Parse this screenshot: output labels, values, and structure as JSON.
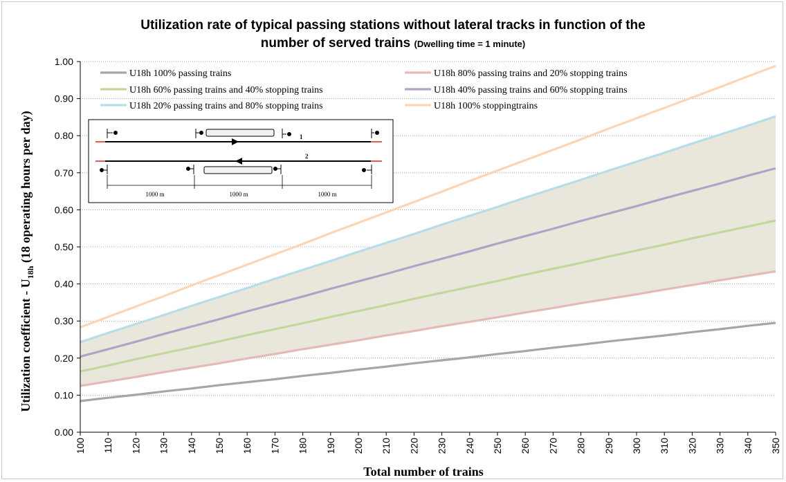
{
  "chart_data": {
    "type": "line",
    "title": "Utilization rate of typical passing stations without lateral tracks in function of the",
    "title_line2": "number of served trains",
    "subtitle": "(Dwelling time = 1 minute)",
    "xlabel": "Total number of trains",
    "ylabel_prefix": "Utilization coefficient - U",
    "ylabel_sub": "18h",
    "ylabel_suffix": " (18 operating hours per day)",
    "x": [
      100,
      110,
      120,
      130,
      140,
      150,
      160,
      170,
      180,
      190,
      200,
      210,
      220,
      230,
      240,
      250,
      260,
      270,
      280,
      290,
      300,
      310,
      320,
      330,
      340,
      350
    ],
    "xlim": [
      100,
      350
    ],
    "ylim": [
      0,
      1.0
    ],
    "x_ticks": [
      "100",
      "110",
      "120",
      "130",
      "140",
      "150",
      "160",
      "170",
      "180",
      "190",
      "200",
      "210",
      "220",
      "230",
      "240",
      "250",
      "260",
      "270",
      "280",
      "290",
      "300",
      "310",
      "320",
      "330",
      "340",
      "350"
    ],
    "y_ticks": [
      "0.00",
      "0.10",
      "0.20",
      "0.30",
      "0.40",
      "0.50",
      "0.60",
      "0.70",
      "0.80",
      "0.90",
      "1.00"
    ],
    "grid": "horizontal dotted",
    "legend_position": "top-left",
    "shaded_band": {
      "between": [
        "U18h 80% passing trains and 20% stopping trains",
        "U18h 20% passing trains and 80% stopping trains"
      ],
      "color": "#e9e6dc"
    },
    "series": [
      {
        "name": "U18h 100% passing trains",
        "color": "#a6a6a6",
        "values": [
          0.084,
          0.093,
          0.101,
          0.11,
          0.118,
          0.127,
          0.135,
          0.143,
          0.152,
          0.16,
          0.169,
          0.177,
          0.186,
          0.194,
          0.202,
          0.211,
          0.219,
          0.228,
          0.236,
          0.245,
          0.253,
          0.261,
          0.27,
          0.278,
          0.287,
          0.295
        ]
      },
      {
        "name": "U18h 80% passing trains and 20% stopping trains",
        "color": "#e6b9b8",
        "values": [
          0.125,
          0.137,
          0.149,
          0.162,
          0.174,
          0.186,
          0.199,
          0.211,
          0.224,
          0.236,
          0.248,
          0.261,
          0.273,
          0.286,
          0.298,
          0.31,
          0.323,
          0.335,
          0.348,
          0.36,
          0.372,
          0.385,
          0.397,
          0.41,
          0.422,
          0.434
        ]
      },
      {
        "name": "U18h 60% passing trains and 40% stopping trains",
        "color": "#c3d69b",
        "values": [
          0.164,
          0.18,
          0.197,
          0.213,
          0.229,
          0.245,
          0.262,
          0.278,
          0.294,
          0.311,
          0.327,
          0.343,
          0.36,
          0.376,
          0.392,
          0.408,
          0.425,
          0.441,
          0.457,
          0.474,
          0.49,
          0.506,
          0.523,
          0.539,
          0.555,
          0.571
        ]
      },
      {
        "name": "U18h 40% passing trains and 60% stopping trains",
        "color": "#b3a2c7",
        "values": [
          0.204,
          0.224,
          0.244,
          0.265,
          0.285,
          0.305,
          0.326,
          0.346,
          0.366,
          0.387,
          0.407,
          0.427,
          0.448,
          0.468,
          0.488,
          0.509,
          0.529,
          0.549,
          0.57,
          0.59,
          0.61,
          0.631,
          0.651,
          0.671,
          0.692,
          0.712
        ]
      },
      {
        "name": "U18h 20% passing trains and 80% stopping trains",
        "color": "#b7dde8",
        "values": [
          0.243,
          0.268,
          0.292,
          0.316,
          0.341,
          0.365,
          0.389,
          0.414,
          0.438,
          0.462,
          0.487,
          0.511,
          0.535,
          0.56,
          0.584,
          0.608,
          0.633,
          0.657,
          0.681,
          0.706,
          0.73,
          0.754,
          0.779,
          0.803,
          0.827,
          0.852
        ]
      },
      {
        "name": "U18h 100% stoppingtrains",
        "color": "#fcd5b5",
        "values": [
          0.283,
          0.311,
          0.339,
          0.367,
          0.396,
          0.424,
          0.452,
          0.48,
          0.508,
          0.537,
          0.565,
          0.593,
          0.621,
          0.649,
          0.678,
          0.706,
          0.734,
          0.762,
          0.79,
          0.819,
          0.847,
          0.875,
          0.903,
          0.931,
          0.96,
          0.988
        ]
      }
    ]
  },
  "diagram": {
    "track1_label": "1",
    "track2_label": "2",
    "dimension_labels": [
      "1000 m",
      "1000 m",
      "1000 m"
    ]
  }
}
